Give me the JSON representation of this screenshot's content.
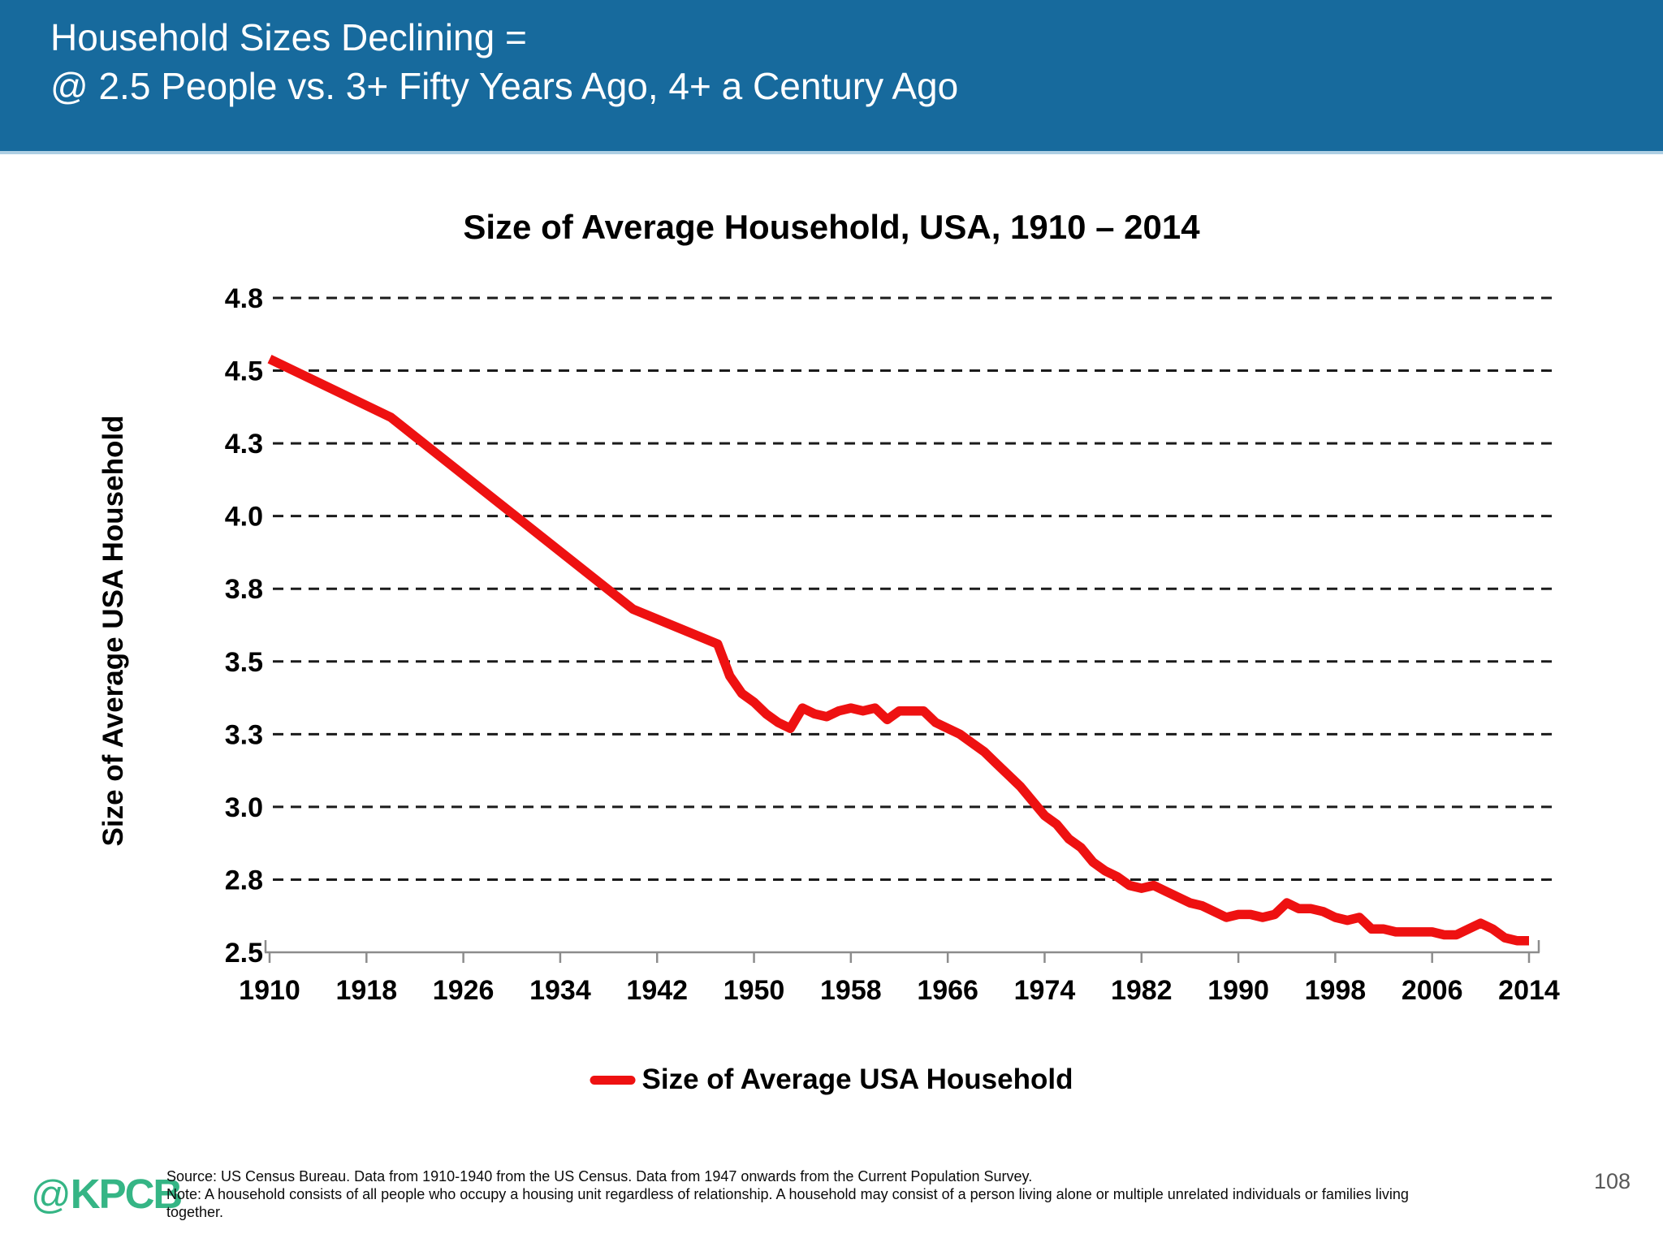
{
  "slide": {
    "header": {
      "line1": "Household Sizes Declining =",
      "line2": "@ 2.5 People vs. 3+ Fifty Years Ago, 4+ a Century Ago"
    },
    "footer": {
      "logo_at": "@",
      "logo_text": "KPCB",
      "source": "Source: US Census Bureau. Data from 1910-1940 from the US Census. Data from 1947 onwards from the Current Population Survey.",
      "note": "Note: A household consists of all people who occupy a housing unit regardless of relationship. A household may consist of a person living alone or multiple unrelated individuals or families living together.",
      "page_number": "108"
    }
  },
  "colors": {
    "header_bg": "#176a9d",
    "header_edge": "#aecfe3",
    "header_text": "#ffffff",
    "line_red": "#ee1111",
    "grid_dash": "#1b1b1b",
    "axis_gray": "#8c8c8c",
    "logo_green": "#35b585",
    "page_number_gray": "#595959"
  },
  "chart_data": {
    "type": "line",
    "title": "Size of Average Household, USA, 1910 – 2014",
    "xlabel": "",
    "ylabel": "Size of Average USA Household",
    "legend_position": "bottom",
    "grid": "horizontal-dashed",
    "xlim": [
      1910,
      2014
    ],
    "ylim": [
      2.5,
      4.75
    ],
    "x_ticks": [
      1910,
      1918,
      1926,
      1934,
      1942,
      1950,
      1958,
      1966,
      1974,
      1982,
      1990,
      1998,
      2006,
      2014
    ],
    "y_ticks": [
      {
        "label": "4.8",
        "value": 4.75
      },
      {
        "label": "4.5",
        "value": 4.5
      },
      {
        "label": "4.3",
        "value": 4.25
      },
      {
        "label": "4.0",
        "value": 4.0
      },
      {
        "label": "3.8",
        "value": 3.75
      },
      {
        "label": "3.5",
        "value": 3.5
      },
      {
        "label": "3.3",
        "value": 3.25
      },
      {
        "label": "3.0",
        "value": 3.0
      },
      {
        "label": "2.8",
        "value": 2.75
      },
      {
        "label": "2.5",
        "value": 2.5
      }
    ],
    "legend": [
      {
        "label": "Size of Average USA Household",
        "color": "#ee1111"
      }
    ],
    "series": [
      {
        "name": "Size of Average USA Household",
        "points": [
          [
            1910,
            4.54
          ],
          [
            1920,
            4.34
          ],
          [
            1930,
            4.01
          ],
          [
            1940,
            3.68
          ],
          [
            1947,
            3.56
          ],
          [
            1948,
            3.45
          ],
          [
            1949,
            3.39
          ],
          [
            1950,
            3.36
          ],
          [
            1951,
            3.32
          ],
          [
            1952,
            3.29
          ],
          [
            1953,
            3.27
          ],
          [
            1954,
            3.34
          ],
          [
            1955,
            3.32
          ],
          [
            1956,
            3.31
          ],
          [
            1957,
            3.33
          ],
          [
            1958,
            3.34
          ],
          [
            1959,
            3.33
          ],
          [
            1960,
            3.34
          ],
          [
            1961,
            3.3
          ],
          [
            1962,
            3.33
          ],
          [
            1963,
            3.33
          ],
          [
            1964,
            3.33
          ],
          [
            1965,
            3.29
          ],
          [
            1966,
            3.27
          ],
          [
            1967,
            3.25
          ],
          [
            1968,
            3.22
          ],
          [
            1969,
            3.19
          ],
          [
            1970,
            3.15
          ],
          [
            1971,
            3.11
          ],
          [
            1972,
            3.07
          ],
          [
            1973,
            3.02
          ],
          [
            1974,
            2.97
          ],
          [
            1975,
            2.94
          ],
          [
            1976,
            2.89
          ],
          [
            1977,
            2.86
          ],
          [
            1978,
            2.81
          ],
          [
            1979,
            2.78
          ],
          [
            1980,
            2.76
          ],
          [
            1981,
            2.73
          ],
          [
            1982,
            2.72
          ],
          [
            1983,
            2.73
          ],
          [
            1984,
            2.71
          ],
          [
            1985,
            2.69
          ],
          [
            1986,
            2.67
          ],
          [
            1987,
            2.66
          ],
          [
            1988,
            2.64
          ],
          [
            1989,
            2.62
          ],
          [
            1990,
            2.63
          ],
          [
            1991,
            2.63
          ],
          [
            1992,
            2.62
          ],
          [
            1993,
            2.63
          ],
          [
            1994,
            2.67
          ],
          [
            1995,
            2.65
          ],
          [
            1996,
            2.65
          ],
          [
            1997,
            2.64
          ],
          [
            1998,
            2.62
          ],
          [
            1999,
            2.61
          ],
          [
            2000,
            2.62
          ],
          [
            2001,
            2.58
          ],
          [
            2002,
            2.58
          ],
          [
            2003,
            2.57
          ],
          [
            2004,
            2.57
          ],
          [
            2005,
            2.57
          ],
          [
            2006,
            2.57
          ],
          [
            2007,
            2.56
          ],
          [
            2008,
            2.56
          ],
          [
            2009,
            2.58
          ],
          [
            2010,
            2.6
          ],
          [
            2011,
            2.58
          ],
          [
            2012,
            2.55
          ],
          [
            2013,
            2.54
          ],
          [
            2014,
            2.54
          ]
        ]
      }
    ]
  }
}
